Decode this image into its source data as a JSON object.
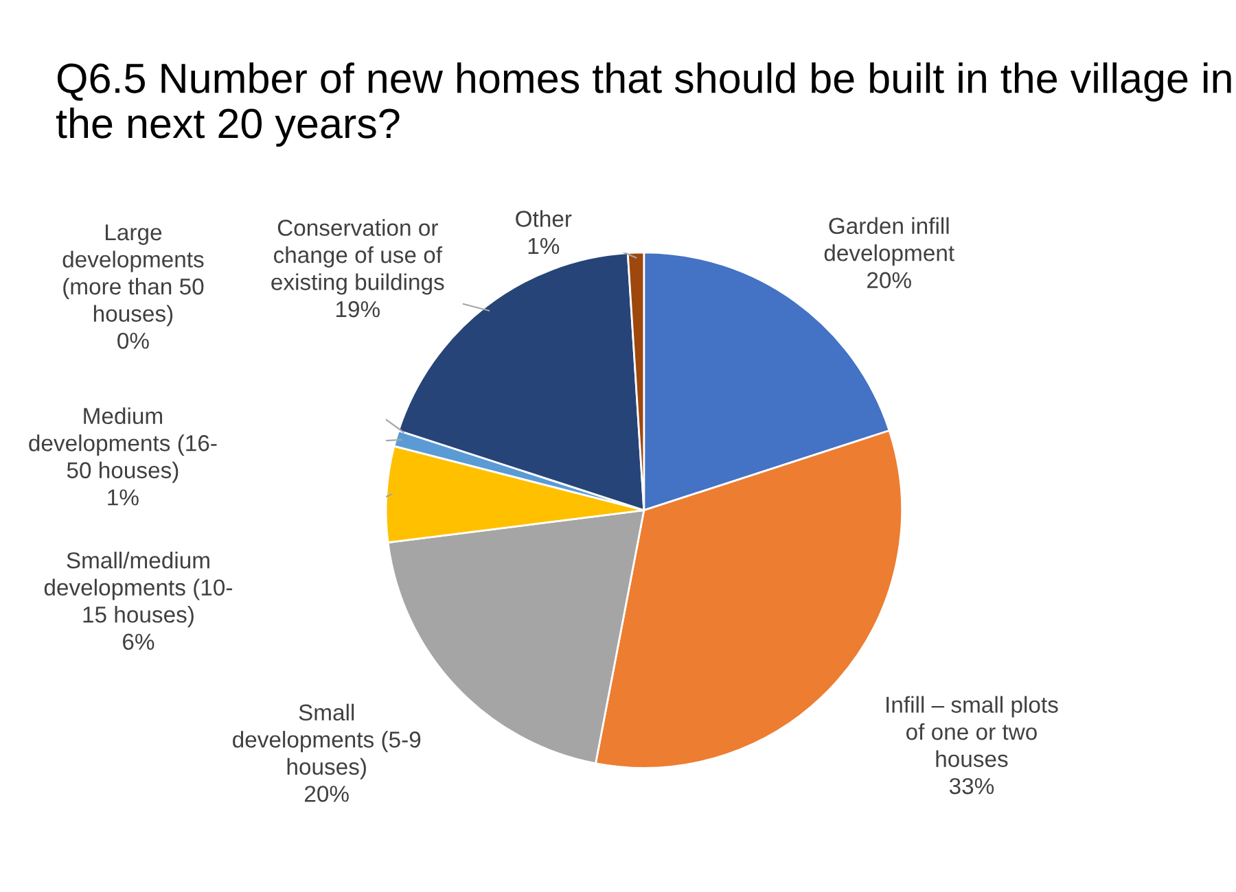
{
  "chart_data": {
    "type": "pie",
    "title": "Q6.5 Number of new homes that should be built in the village in the next 20 years?",
    "categories": [
      "Garden infill\ndevelopment",
      "Infill – small plots\nof one or two\nhouses",
      "Small\ndevelopments (5-9\nhouses)",
      "Small/medium\ndevelopments (10-\n15 houses)",
      "Medium\ndevelopments (16-\n50 houses)",
      "Large\ndevelopments\n(more than 50\nhouses)",
      "Conservation or\nchange of use of\nexisting buildings",
      "Other"
    ],
    "values": [
      20,
      33,
      20,
      6,
      1,
      0,
      19,
      1
    ],
    "value_labels": [
      "20%",
      "33%",
      "20%",
      "6%",
      "1%",
      "0%",
      "19%",
      "1%"
    ],
    "colors": [
      "#4472c4",
      "#ed7d31",
      "#a5a5a5",
      "#ffc000",
      "#5b9bd5",
      "#70ad47",
      "#264478",
      "#9e480e"
    ],
    "legend": false
  }
}
